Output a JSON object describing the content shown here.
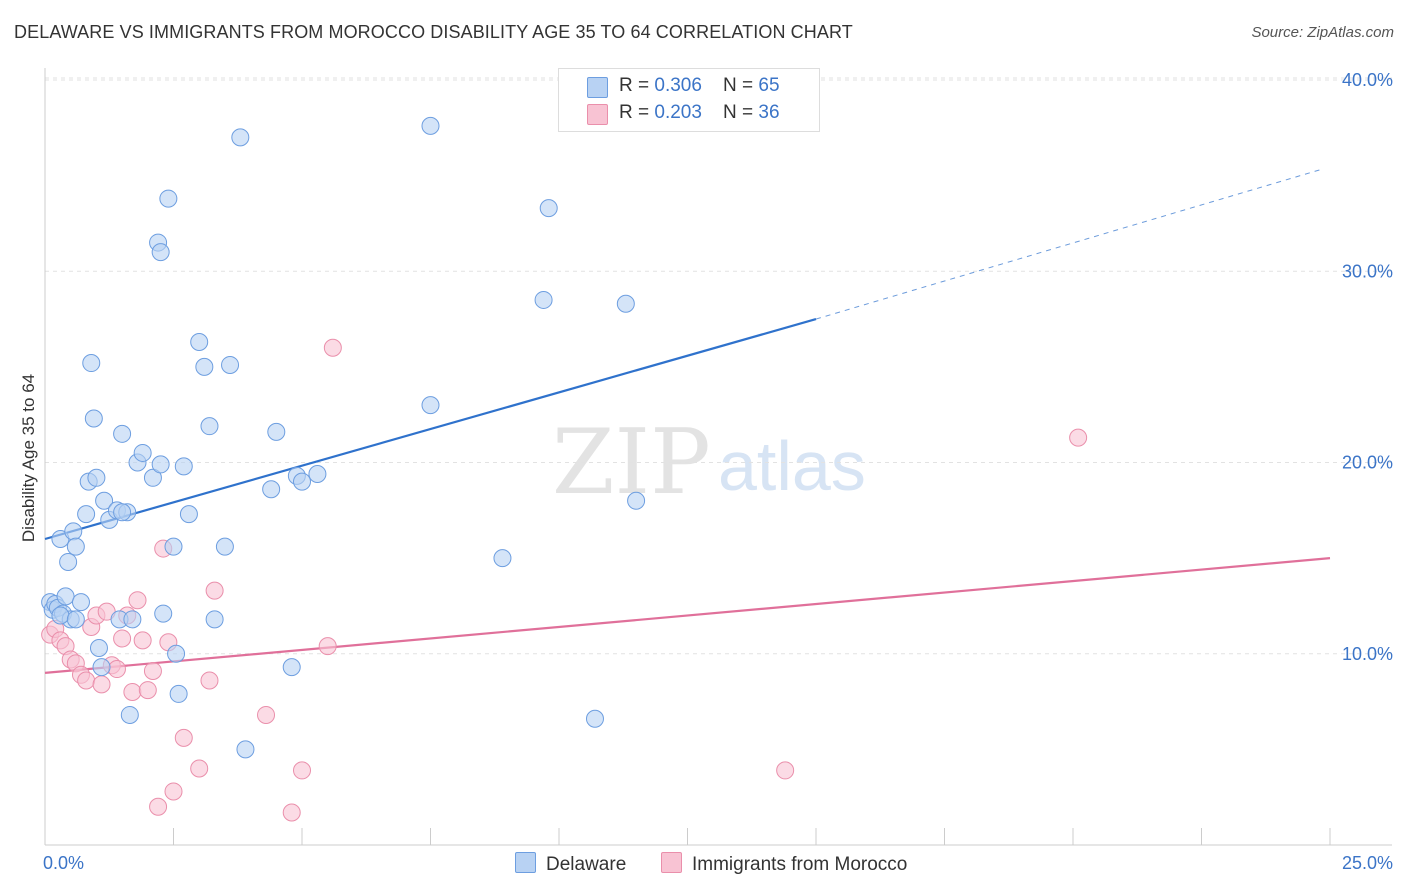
{
  "title": "DELAWARE VS IMMIGRANTS FROM MOROCCO DISABILITY AGE 35 TO 64 CORRELATION CHART",
  "source": "Source: ZipAtlas.com",
  "watermark": {
    "zip": "ZIP",
    "atlas": "atlas"
  },
  "legend": {
    "rows": [
      {
        "r_label": "R = ",
        "r_value": "0.306",
        "n_label": "N = ",
        "n_value": "65"
      },
      {
        "r_label": "R = ",
        "r_value": "0.203",
        "n_label": "N = ",
        "n_value": "36"
      }
    ]
  },
  "colors": {
    "delaware_fill": "#b8d2f3",
    "delaware_stroke": "#6d9ee0",
    "delaware_line": "#2f72cc",
    "morocco_fill": "#f8c3d3",
    "morocco_stroke": "#ea8fab",
    "morocco_line": "#e0709a",
    "grid": "#e2e2e2",
    "axis_text": "#3b74c7"
  },
  "chart_data": {
    "type": "scatter",
    "title": "DELAWARE VS IMMIGRANTS FROM MOROCCO DISABILITY AGE 35 TO 64 CORRELATION CHART",
    "xlabel": "",
    "ylabel": "Disability Age 35 to 64",
    "xlim": [
      0,
      25
    ],
    "ylim": [
      0,
      40
    ],
    "x_tick_labels": {
      "left": "0.0%",
      "right": "25.0%"
    },
    "y_ticks": [
      {
        "value": 10,
        "label": "10.0%"
      },
      {
        "value": 20,
        "label": "20.0%"
      },
      {
        "value": 30,
        "label": "30.0%"
      },
      {
        "value": 40,
        "label": "40.0%"
      }
    ],
    "grid": true,
    "series": [
      {
        "name": "Delaware",
        "r": 0.306,
        "n": 65,
        "trend": {
          "x0": 0,
          "y0": 16.0,
          "x1": 15,
          "y1": 27.5,
          "dashed_to_x": 24.8,
          "dashed_y": 35.3
        },
        "points": [
          [
            0.1,
            12.7
          ],
          [
            0.15,
            12.3
          ],
          [
            0.2,
            12.6
          ],
          [
            0.25,
            12.4
          ],
          [
            0.35,
            12.1
          ],
          [
            0.3,
            16.0
          ],
          [
            0.4,
            13.0
          ],
          [
            0.45,
            14.8
          ],
          [
            0.5,
            11.8
          ],
          [
            0.55,
            16.4
          ],
          [
            0.6,
            15.6
          ],
          [
            0.7,
            12.7
          ],
          [
            0.8,
            17.3
          ],
          [
            0.85,
            19.0
          ],
          [
            0.9,
            25.2
          ],
          [
            0.95,
            22.3
          ],
          [
            1.0,
            19.2
          ],
          [
            1.05,
            10.3
          ],
          [
            1.1,
            9.3
          ],
          [
            1.15,
            18.0
          ],
          [
            1.25,
            17.0
          ],
          [
            1.4,
            17.5
          ],
          [
            1.45,
            11.8
          ],
          [
            1.5,
            21.5
          ],
          [
            1.6,
            17.4
          ],
          [
            1.65,
            6.8
          ],
          [
            1.7,
            11.8
          ],
          [
            1.8,
            20.0
          ],
          [
            1.9,
            20.5
          ],
          [
            2.1,
            19.2
          ],
          [
            2.2,
            31.5
          ],
          [
            2.25,
            31.0
          ],
          [
            2.25,
            19.9
          ],
          [
            2.3,
            12.1
          ],
          [
            2.4,
            33.8
          ],
          [
            2.5,
            15.6
          ],
          [
            2.55,
            10.0
          ],
          [
            2.6,
            7.9
          ],
          [
            2.7,
            19.8
          ],
          [
            2.8,
            17.3
          ],
          [
            3.0,
            26.3
          ],
          [
            3.1,
            25.0
          ],
          [
            3.2,
            21.9
          ],
          [
            3.3,
            11.8
          ],
          [
            3.5,
            15.6
          ],
          [
            3.6,
            25.1
          ],
          [
            3.8,
            37.0
          ],
          [
            3.9,
            5.0
          ],
          [
            4.4,
            18.6
          ],
          [
            4.5,
            21.6
          ],
          [
            4.8,
            9.3
          ],
          [
            4.9,
            19.3
          ],
          [
            5.0,
            19.0
          ],
          [
            5.3,
            19.4
          ],
          [
            7.5,
            23.0
          ],
          [
            7.5,
            37.6
          ],
          [
            8.9,
            15.0
          ],
          [
            9.7,
            28.5
          ],
          [
            9.8,
            33.3
          ],
          [
            10.7,
            6.6
          ],
          [
            11.3,
            28.3
          ],
          [
            11.5,
            18.0
          ],
          [
            0.3,
            12.0
          ],
          [
            0.6,
            11.8
          ],
          [
            1.5,
            17.4
          ]
        ]
      },
      {
        "name": "Immigrants from Morocco",
        "r": 0.203,
        "n": 36,
        "trend": {
          "x0": 0,
          "y0": 9.0,
          "x1": 25,
          "y1": 15.0
        },
        "points": [
          [
            0.1,
            11.0
          ],
          [
            0.2,
            11.3
          ],
          [
            0.3,
            10.7
          ],
          [
            0.4,
            10.4
          ],
          [
            0.5,
            9.7
          ],
          [
            0.6,
            9.5
          ],
          [
            0.7,
            8.9
          ],
          [
            0.8,
            8.6
          ],
          [
            0.9,
            11.4
          ],
          [
            1.0,
            12.0
          ],
          [
            1.1,
            8.4
          ],
          [
            1.2,
            12.2
          ],
          [
            1.3,
            9.4
          ],
          [
            1.4,
            9.2
          ],
          [
            1.5,
            10.8
          ],
          [
            1.6,
            12.0
          ],
          [
            1.7,
            8.0
          ],
          [
            1.8,
            12.8
          ],
          [
            1.9,
            10.7
          ],
          [
            2.0,
            8.1
          ],
          [
            2.1,
            9.1
          ],
          [
            2.2,
            2.0
          ],
          [
            2.3,
            15.5
          ],
          [
            2.4,
            10.6
          ],
          [
            2.5,
            2.8
          ],
          [
            2.7,
            5.6
          ],
          [
            3.0,
            4.0
          ],
          [
            3.2,
            8.6
          ],
          [
            3.3,
            13.3
          ],
          [
            4.3,
            6.8
          ],
          [
            4.8,
            1.7
          ],
          [
            5.0,
            3.9
          ],
          [
            5.5,
            10.4
          ],
          [
            5.6,
            26.0
          ],
          [
            14.4,
            3.9
          ],
          [
            20.1,
            21.3
          ]
        ]
      }
    ]
  },
  "bottom_legend": {
    "items": [
      "Delaware",
      "Immigrants from Morocco"
    ]
  }
}
